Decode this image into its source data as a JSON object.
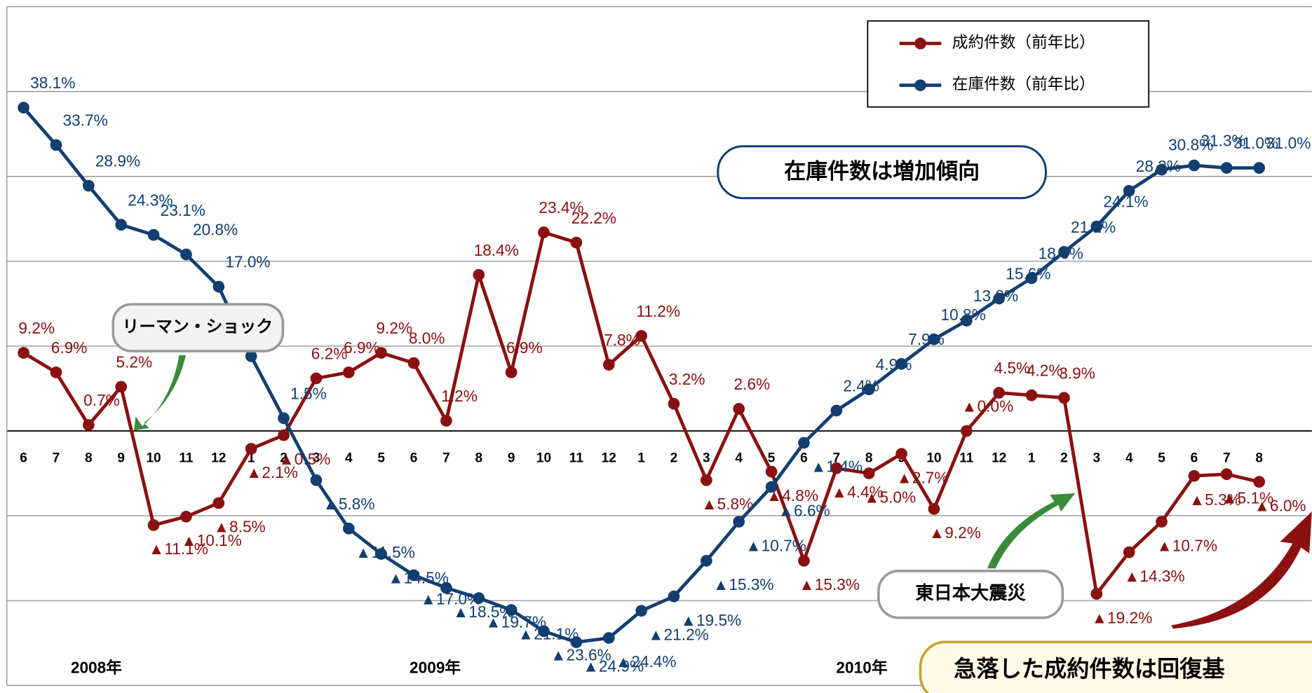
{
  "chart_data": {
    "type": "line",
    "categories": [
      "6",
      "7",
      "8",
      "9",
      "10",
      "11",
      "12",
      "1",
      "2",
      "3",
      "4",
      "5",
      "6",
      "7",
      "8",
      "9",
      "10",
      "11",
      "12",
      "1",
      "2",
      "3",
      "4",
      "5",
      "6",
      "7",
      "8",
      "9",
      "10",
      "11",
      "12",
      "1",
      "2",
      "3",
      "4",
      "5",
      "6",
      "7",
      "8"
    ],
    "year_labels": [
      "2008年",
      "2009年",
      "2010年"
    ],
    "series": [
      {
        "name": "成約件数（前年比）",
        "color": "#8b1010",
        "values": [
          9.2,
          6.9,
          0.7,
          5.2,
          -11.1,
          -10.1,
          -8.5,
          -2.1,
          -0.5,
          6.2,
          6.9,
          9.2,
          8.0,
          1.2,
          18.4,
          6.9,
          23.4,
          22.2,
          7.8,
          11.2,
          3.2,
          -5.8,
          2.6,
          -4.8,
          -15.3,
          -4.4,
          -5.0,
          -2.7,
          -9.2,
          0.0,
          4.5,
          4.2,
          3.9,
          -19.2,
          -14.3,
          -10.7,
          -5.3,
          -5.1,
          -6.0
        ],
        "value_labels": [
          "9.2%",
          "6.9%",
          "0.7%",
          "5.2%",
          "▲11.1%",
          "▲10.1%",
          "▲8.5%",
          "▲2.1%",
          "▲0.5%",
          "6.2%",
          "6.9%",
          "9.2%",
          "8.0%",
          "1.2%",
          "18.4%",
          "6.9%",
          "23.4%",
          "22.2%",
          "7.8%",
          "11.2%",
          "3.2%",
          "▲5.8%",
          "2.6%",
          "▲4.8%",
          "▲15.3%",
          "▲4.4%",
          "▲5.0%",
          "▲2.7%",
          "▲9.2%",
          "▲0.0%",
          "4.5%",
          "4.2%",
          "3.9%",
          "▲19.2%",
          "▲14.3%",
          "▲10.7%",
          "▲5.3%",
          "▲5.1%",
          "▲6.0%"
        ]
      },
      {
        "name": "在庫件数（前年比）",
        "color": "#123f70",
        "values": [
          38.1,
          33.7,
          28.9,
          24.3,
          23.1,
          20.8,
          17.0,
          8.8,
          1.5,
          -5.8,
          -11.5,
          -14.5,
          -17.0,
          -18.5,
          -19.7,
          -21.1,
          -23.6,
          -24.9,
          -24.4,
          -21.2,
          -19.5,
          -15.3,
          -10.7,
          -6.6,
          -1.4,
          2.4,
          4.9,
          7.9,
          10.8,
          13.0,
          15.6,
          18.0,
          21.1,
          24.1,
          28.3,
          30.8,
          31.3,
          31.0,
          31.0
        ],
        "value_labels": [
          "38.1%",
          "33.7%",
          "28.9%",
          "24.3%",
          "23.1%",
          "20.8%",
          "17.0%",
          null,
          "1.5%",
          "▲5.8%",
          "▲11.5%",
          "▲14.5%",
          "▲17.0%",
          "▲18.5%",
          "▲19.7%",
          "▲21.1%",
          "▲23.6%",
          "▲24.9%",
          "▲24.4%",
          "▲21.2%",
          "▲19.5%",
          "▲15.3%",
          "▲10.7%",
          "▲6.6%",
          "▲1.4%",
          "2.4%",
          "4.9%",
          "7.9%",
          "10.8%",
          "13.0%",
          "15.6%",
          "18.0%",
          "21.1%",
          "24.1%",
          "28.3%",
          "30.8%",
          "31.3%",
          "31.0%",
          "31.0%"
        ]
      }
    ],
    "annotations": [
      "リーマン・ショック",
      "在庫件数は増加傾向",
      "東日本大震災",
      "急落した成約件数は回復基"
    ],
    "ylim": [
      -30,
      50
    ],
    "yticks": [
      -30,
      -20,
      -10,
      0,
      10,
      20,
      30,
      40,
      50
    ],
    "grid": true
  }
}
